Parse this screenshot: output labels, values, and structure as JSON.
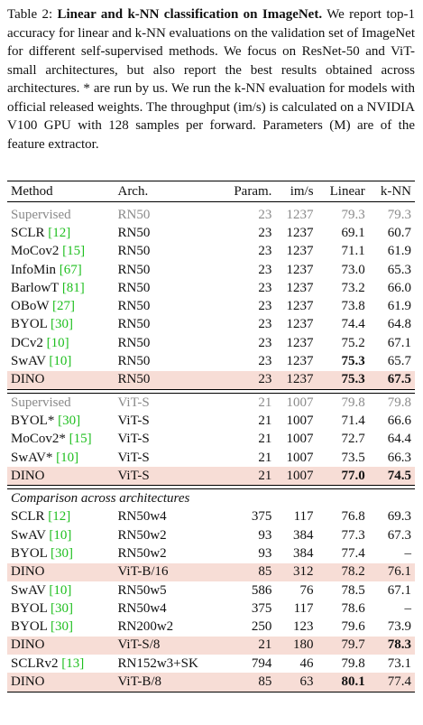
{
  "caption": {
    "label": "Table 2:",
    "title": "Linear and k-NN classification on ImageNet.",
    "text": "We report top-1 accuracy for linear and k-NN evaluations on the validation set of ImageNet for different self-supervised methods. We focus on ResNet-50 and ViT-small architectures, but also report the best results obtained across architectures. * are run by us. We run the k-NN evaluation for models with official released weights. The throughput (im/s) is calculated on a NVIDIA V100 GPU with 128 samples per forward. Parameters (M) are of the feature extractor."
  },
  "table": {
    "header": [
      "Method",
      "Arch.",
      "Param.",
      "im/s",
      "Linear",
      "k-NN"
    ],
    "sections": [
      {
        "rows": [
          {
            "method": "Supervised",
            "arch": "RN50",
            "params": "23",
            "ims": "1237",
            "linear": "79.3",
            "knn": "79.3",
            "muted": true
          },
          {
            "method": "SCLR",
            "ref": "[12]",
            "arch": "RN50",
            "params": "23",
            "ims": "1237",
            "linear": "69.1",
            "knn": "60.7"
          },
          {
            "method": "MoCov2",
            "ref": "[15]",
            "arch": "RN50",
            "params": "23",
            "ims": "1237",
            "linear": "71.1",
            "knn": "61.9"
          },
          {
            "method": "InfoMin",
            "ref": "[67]",
            "arch": "RN50",
            "params": "23",
            "ims": "1237",
            "linear": "73.0",
            "knn": "65.3"
          },
          {
            "method": "BarlowT",
            "ref": "[81]",
            "arch": "RN50",
            "params": "23",
            "ims": "1237",
            "linear": "73.2",
            "knn": "66.0"
          },
          {
            "method": "OBoW",
            "ref": "[27]",
            "arch": "RN50",
            "params": "23",
            "ims": "1237",
            "linear": "73.8",
            "knn": "61.9"
          },
          {
            "method": "BYOL",
            "ref": "[30]",
            "arch": "RN50",
            "params": "23",
            "ims": "1237",
            "linear": "74.4",
            "knn": "64.8"
          },
          {
            "method": "DCv2",
            "ref": "[10]",
            "arch": "RN50",
            "params": "23",
            "ims": "1237",
            "linear": "75.2",
            "knn": "67.1"
          },
          {
            "method": "SwAV",
            "ref": "[10]",
            "arch": "RN50",
            "params": "23",
            "ims": "1237",
            "linear": "75.3",
            "knn": "65.7",
            "bold": [
              "linear"
            ]
          },
          {
            "method": "DINO",
            "arch": "RN50",
            "params": "23",
            "ims": "1237",
            "linear": "75.3",
            "knn": "67.5",
            "highlight": true,
            "bold": [
              "linear",
              "knn"
            ]
          }
        ]
      },
      {
        "rows": [
          {
            "method": "Supervised",
            "arch": "ViT-S",
            "params": "21",
            "ims": "1007",
            "linear": "79.8",
            "knn": "79.8",
            "muted": true
          },
          {
            "method": "BYOL*",
            "ref": "[30]",
            "arch": "ViT-S",
            "params": "21",
            "ims": "1007",
            "linear": "71.4",
            "knn": "66.6"
          },
          {
            "method": "MoCov2*",
            "ref": "[15]",
            "arch": "ViT-S",
            "params": "21",
            "ims": "1007",
            "linear": "72.7",
            "knn": "64.4"
          },
          {
            "method": "SwAV*",
            "ref": "[10]",
            "arch": "ViT-S",
            "params": "21",
            "ims": "1007",
            "linear": "73.5",
            "knn": "66.3"
          },
          {
            "method": "DINO",
            "arch": "ViT-S",
            "params": "21",
            "ims": "1007",
            "linear": "77.0",
            "knn": "74.5",
            "highlight": true,
            "bold": [
              "linear",
              "knn"
            ]
          }
        ]
      },
      {
        "title": "Comparison across architectures",
        "rows": [
          {
            "method": "SCLR",
            "ref": "[12]",
            "arch": "RN50w4",
            "params": "375",
            "ims": "117",
            "linear": "76.8",
            "knn": "69.3"
          },
          {
            "method": "SwAV",
            "ref": "[10]",
            "arch": "RN50w2",
            "params": "93",
            "ims": "384",
            "linear": "77.3",
            "knn": "67.3"
          },
          {
            "method": "BYOL",
            "ref": "[30]",
            "arch": "RN50w2",
            "params": "93",
            "ims": "384",
            "linear": "77.4",
            "knn": "–"
          },
          {
            "method": "DINO",
            "arch": "ViT-B/16",
            "params": "85",
            "ims": "312",
            "linear": "78.2",
            "knn": "76.1",
            "highlight": true
          },
          {
            "method": "SwAV",
            "ref": "[10]",
            "arch": "RN50w5",
            "params": "586",
            "ims": "76",
            "linear": "78.5",
            "knn": "67.1"
          },
          {
            "method": "BYOL",
            "ref": "[30]",
            "arch": "RN50w4",
            "params": "375",
            "ims": "117",
            "linear": "78.6",
            "knn": "–"
          },
          {
            "method": "BYOL",
            "ref": "[30]",
            "arch": "RN200w2",
            "params": "250",
            "ims": "123",
            "linear": "79.6",
            "knn": "73.9"
          },
          {
            "method": "DINO",
            "arch": "ViT-S/8",
            "params": "21",
            "ims": "180",
            "linear": "79.7",
            "knn": "78.3",
            "highlight": true,
            "bold": [
              "knn"
            ]
          },
          {
            "method": "SCLRv2",
            "ref": "[13]",
            "arch": "RN152w3+SK",
            "params": "794",
            "ims": "46",
            "linear": "79.8",
            "knn": "73.1"
          },
          {
            "method": "DINO",
            "arch": "ViT-B/8",
            "params": "85",
            "ims": "63",
            "linear": "80.1",
            "knn": "77.4",
            "highlight": true,
            "bold": [
              "linear"
            ]
          }
        ]
      }
    ]
  }
}
